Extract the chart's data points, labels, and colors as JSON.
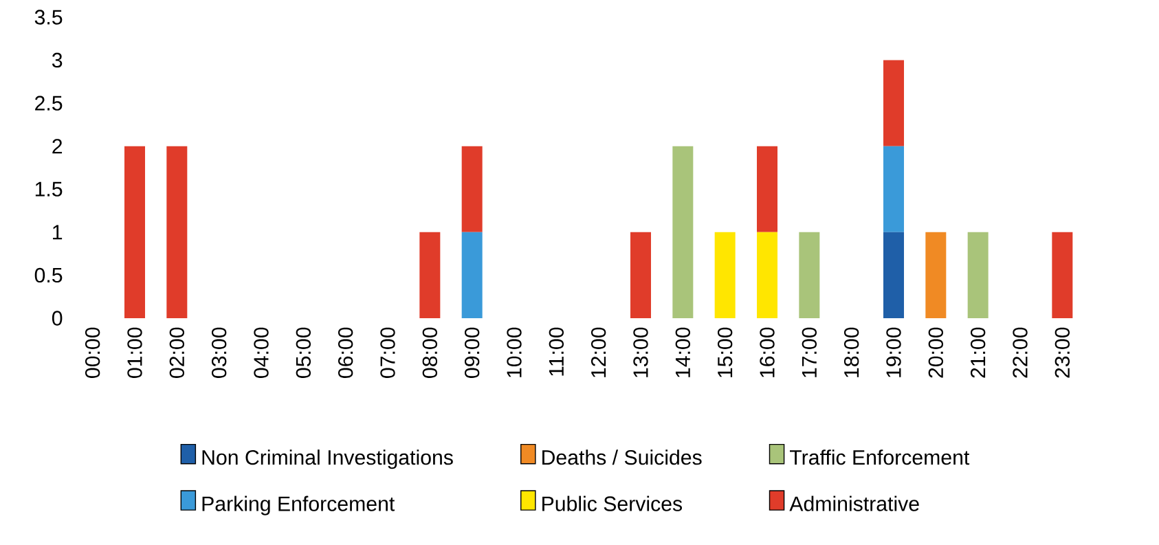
{
  "chart_data": {
    "type": "bar",
    "stacked": true,
    "legend": "bottom",
    "categories": [
      "00:00",
      "01:00",
      "02:00",
      "03:00",
      "04:00",
      "05:00",
      "06:00",
      "07:00",
      "08:00",
      "09:00",
      "10:00",
      "11:00",
      "12:00",
      "13:00",
      "14:00",
      "15:00",
      "16:00",
      "17:00",
      "18:00",
      "19:00",
      "20:00",
      "21:00",
      "22:00",
      "23:00"
    ],
    "ylim": [
      0,
      3.5
    ],
    "yticks": [
      0,
      0.5,
      1,
      1.5,
      2,
      2.5,
      3,
      3.5
    ],
    "series": [
      {
        "name": "Non Criminal Investigations",
        "color": "#1f5fa8",
        "values": [
          0,
          0,
          0,
          0,
          0,
          0,
          0,
          0,
          0,
          0,
          0,
          0,
          0,
          0,
          0,
          0,
          0,
          0,
          0,
          1,
          0,
          0,
          0,
          0
        ]
      },
      {
        "name": "Deaths / Suicides",
        "color": "#f08a24",
        "values": [
          0,
          0,
          0,
          0,
          0,
          0,
          0,
          0,
          0,
          0,
          0,
          0,
          0,
          0,
          0,
          0,
          0,
          0,
          0,
          0,
          1,
          0,
          0,
          0
        ]
      },
      {
        "name": "Traffic Enforcement",
        "color": "#a9c47a",
        "values": [
          0,
          0,
          0,
          0,
          0,
          0,
          0,
          0,
          0,
          0,
          0,
          0,
          0,
          0,
          2,
          0,
          0,
          1,
          0,
          0,
          0,
          1,
          0,
          0
        ]
      },
      {
        "name": "Parking Enforcement",
        "color": "#3a9ad9",
        "values": [
          0,
          0,
          0,
          0,
          0,
          0,
          0,
          0,
          0,
          1,
          0,
          0,
          0,
          0,
          0,
          0,
          0,
          0,
          0,
          1,
          0,
          0,
          0,
          0
        ]
      },
      {
        "name": "Public Services",
        "color": "#ffe600",
        "values": [
          0,
          0,
          0,
          0,
          0,
          0,
          0,
          0,
          0,
          0,
          0,
          0,
          0,
          0,
          0,
          1,
          1,
          0,
          0,
          0,
          0,
          0,
          0,
          0
        ]
      },
      {
        "name": "Administrative",
        "color": "#e03c2a",
        "values": [
          0,
          2,
          2,
          0,
          0,
          0,
          0,
          0,
          1,
          1,
          0,
          0,
          0,
          1,
          0,
          0,
          1,
          0,
          0,
          1,
          0,
          0,
          0,
          1
        ]
      }
    ]
  }
}
